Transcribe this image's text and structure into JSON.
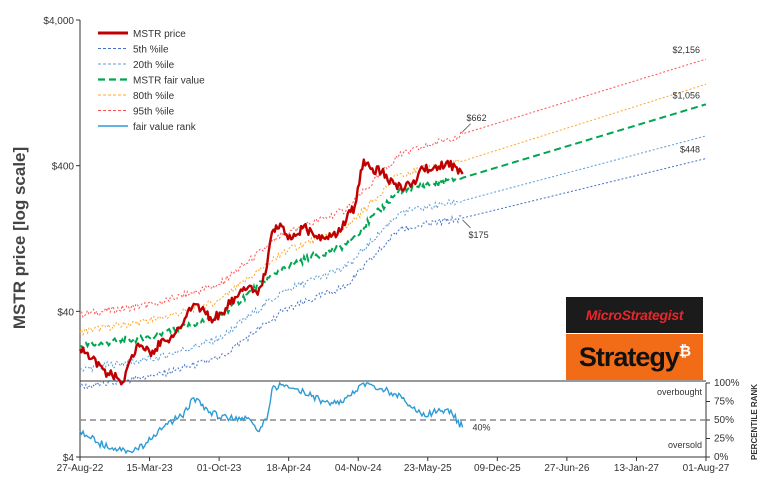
{
  "chart_data": {
    "type": "line",
    "ylabel": "MSTR price [log scale]",
    "y_scale": "log",
    "ylim": [
      4,
      4000
    ],
    "y_ticks": [
      "$4",
      "$40",
      "$400",
      "$4,000"
    ],
    "y_tick_values": [
      4,
      40,
      400,
      4000
    ],
    "x_tick_labels": [
      "27-Aug-22",
      "15-Mar-23",
      "01-Oct-23",
      "18-Apr-24",
      "04-Nov-24",
      "23-May-25",
      "09-Dec-25",
      "27-Jun-26",
      "13-Jan-27",
      "01-Aug-27"
    ],
    "xlim": [
      "2022-08-27",
      "2027-08-01"
    ],
    "grid": false,
    "legend_position": "top-left",
    "colors": {
      "price": "#c00000",
      "p5": "#4472c4",
      "p20": "#5b9bd5",
      "fair": "#00a651",
      "p80": "#ffa726",
      "p95": "#ff5050",
      "rank": "#2e9bd6"
    },
    "series": [
      {
        "name": "MSTR price",
        "key": "price",
        "style": "solid",
        "x": [
          "2022-08-27",
          "2022-10-01",
          "2022-11-15",
          "2022-12-28",
          "2023-02-10",
          "2023-03-15",
          "2023-05-01",
          "2023-06-20",
          "2023-07-20",
          "2023-09-15",
          "2023-10-20",
          "2023-11-20",
          "2023-12-28",
          "2024-01-20",
          "2024-02-15",
          "2024-03-01",
          "2024-03-25",
          "2024-04-25",
          "2024-06-01",
          "2024-07-01",
          "2024-08-05",
          "2024-09-05",
          "2024-10-01",
          "2024-10-25",
          "2024-11-20",
          "2024-12-10",
          "2025-01-10",
          "2025-02-15",
          "2025-03-10",
          "2025-04-08",
          "2025-05-10",
          "2025-06-10",
          "2025-07-15",
          "2025-08-10",
          "2025-08-31"
        ],
        "values": [
          22,
          19,
          15,
          13,
          24,
          21,
          25,
          33,
          45,
          35,
          42,
          50,
          60,
          52,
          80,
          140,
          160,
          125,
          155,
          130,
          130,
          135,
          170,
          210,
          440,
          380,
          360,
          300,
          270,
          300,
          380,
          390,
          420,
          395,
          350
        ]
      },
      {
        "name": "5th %ile",
        "key": "p5",
        "style": "dot",
        "x": [
          "2022-08-27",
          "2023-04-01",
          "2023-10-01",
          "2024-04-01",
          "2024-10-01",
          "2025-03-01",
          "2025-08-31",
          "2027-08-01"
        ],
        "values": [
          12,
          14.5,
          19,
          40,
          60,
          145,
          175,
          448
        ]
      },
      {
        "name": "20th %ile",
        "key": "p20",
        "style": "dot",
        "x": [
          "2022-08-27",
          "2023-04-01",
          "2023-10-01",
          "2024-04-01",
          "2024-10-01",
          "2025-03-01",
          "2025-08-31",
          "2027-08-01"
        ],
        "values": [
          16,
          19,
          26,
          55,
          80,
          190,
          230,
          640
        ]
      },
      {
        "name": "MSTR fair value",
        "key": "fair",
        "style": "dash",
        "x": [
          "2022-08-27",
          "2023-04-01",
          "2023-10-01",
          "2024-04-01",
          "2024-10-01",
          "2025-03-01",
          "2025-08-31",
          "2027-08-01"
        ],
        "values": [
          23,
          27,
          37,
          80,
          115,
          270,
          330,
          1056
        ]
      },
      {
        "name": "80th %ile",
        "key": "p80",
        "style": "dot",
        "x": [
          "2022-08-27",
          "2023-04-01",
          "2023-10-01",
          "2024-04-01",
          "2024-10-01",
          "2025-03-01",
          "2025-08-31",
          "2027-08-01"
        ],
        "values": [
          29,
          35,
          47,
          102,
          150,
          350,
          430,
          1450
        ]
      },
      {
        "name": "95th %ile",
        "key": "p95",
        "style": "dot",
        "x": [
          "2022-08-27",
          "2023-04-01",
          "2023-10-01",
          "2024-04-01",
          "2024-10-01",
          "2025-03-01",
          "2025-08-31",
          "2027-08-01"
        ],
        "values": [
          38,
          45,
          61,
          135,
          200,
          470,
          662,
          2156
        ]
      },
      {
        "name": "fair value rank",
        "key": "rank",
        "style": "solid",
        "axis": "rank",
        "x": [
          "2022-08-27",
          "2022-10-15",
          "2022-12-15",
          "2023-01-15",
          "2023-03-01",
          "2023-05-01",
          "2023-06-15",
          "2023-07-20",
          "2023-09-01",
          "2023-11-01",
          "2023-12-15",
          "2024-01-20",
          "2024-02-15",
          "2024-03-01",
          "2024-04-01",
          "2024-06-01",
          "2024-07-15",
          "2024-08-15",
          "2024-10-01",
          "2024-11-15",
          "2024-12-15",
          "2025-01-20",
          "2025-02-20",
          "2025-04-01",
          "2025-05-15",
          "2025-06-20",
          "2025-07-20",
          "2025-08-31"
        ],
        "values": [
          35,
          20,
          10,
          8,
          15,
          45,
          55,
          80,
          60,
          52,
          55,
          35,
          50,
          92,
          98,
          88,
          78,
          70,
          80,
          99,
          97,
          90,
          85,
          70,
          55,
          62,
          65,
          40
        ]
      }
    ],
    "rank_axis": {
      "title": "PERCENTILE RANK",
      "ticks": [
        "0%",
        "25%",
        "50%",
        "75%",
        "100%"
      ],
      "tick_values": [
        0,
        25,
        50,
        75,
        100
      ],
      "reference_line": 50,
      "labels": {
        "overbought": "overbought",
        "oversold": "oversold"
      }
    },
    "annotations": [
      {
        "text": "$662",
        "x": "2025-08-31",
        "value": 662,
        "series": "p95"
      },
      {
        "text": "$175",
        "x": "2025-08-31",
        "value": 175,
        "series": "p5"
      },
      {
        "text": "$2,156",
        "x": "2027-08-01",
        "value": 2156,
        "series": "p95"
      },
      {
        "text": "$1,056",
        "x": "2027-08-01",
        "value": 1056,
        "series": "fair"
      },
      {
        "text": "$448",
        "x": "2027-08-01",
        "value": 448,
        "series": "p5"
      },
      {
        "text": "40%",
        "x": "2025-08-31",
        "value": 40,
        "series": "rank"
      }
    ]
  },
  "logo": {
    "top_text": "MicroStrategist",
    "bottom_text": "Strategy",
    "bottom_symbol": "₿"
  }
}
